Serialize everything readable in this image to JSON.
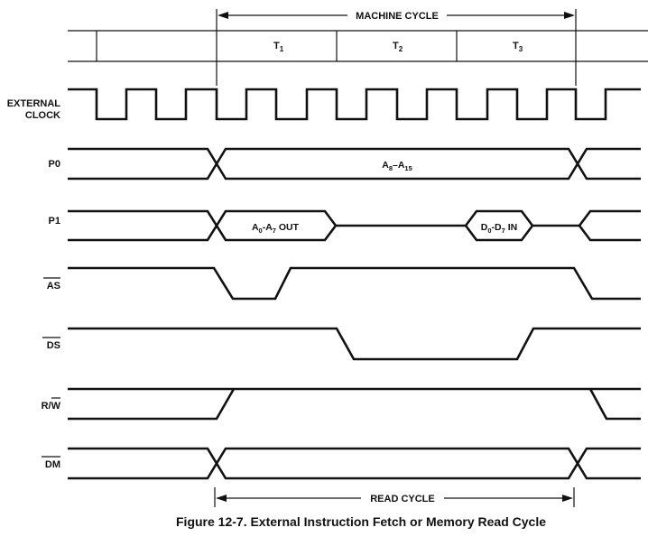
{
  "spans": {
    "machine_cycle": "MACHINE CYCLE",
    "read_cycle": "READ CYCLE"
  },
  "t_states": {
    "t1_base": "T",
    "t1_sub": "1",
    "t2_base": "T",
    "t2_sub": "2",
    "t3_base": "T",
    "t3_sub": "3"
  },
  "signals": {
    "clock_line1": "EXTERNAL",
    "clock_line2": "CLOCK",
    "p0": "P0",
    "p1": "P1",
    "as": "AS",
    "ds": "DS",
    "rw_r": "R/",
    "rw_w": "W",
    "dm": "DM"
  },
  "bus_labels": {
    "p0_a": "A",
    "p0_a_sub": "8",
    "p0_dash": "–A",
    "p0_b_sub": "15",
    "p1_out_a": "A",
    "p1_out_a_sub": "0",
    "p1_out_dash": "-A",
    "p1_out_b_sub": "7",
    "p1_out_tail": " OUT",
    "p1_in_a": "D",
    "p1_in_a_sub": "0",
    "p1_in_dash": "-D",
    "p1_in_b_sub": "7",
    "p1_in_tail": " IN"
  },
  "caption": "Figure 12-7. External Instruction Fetch or Memory Read Cycle"
}
